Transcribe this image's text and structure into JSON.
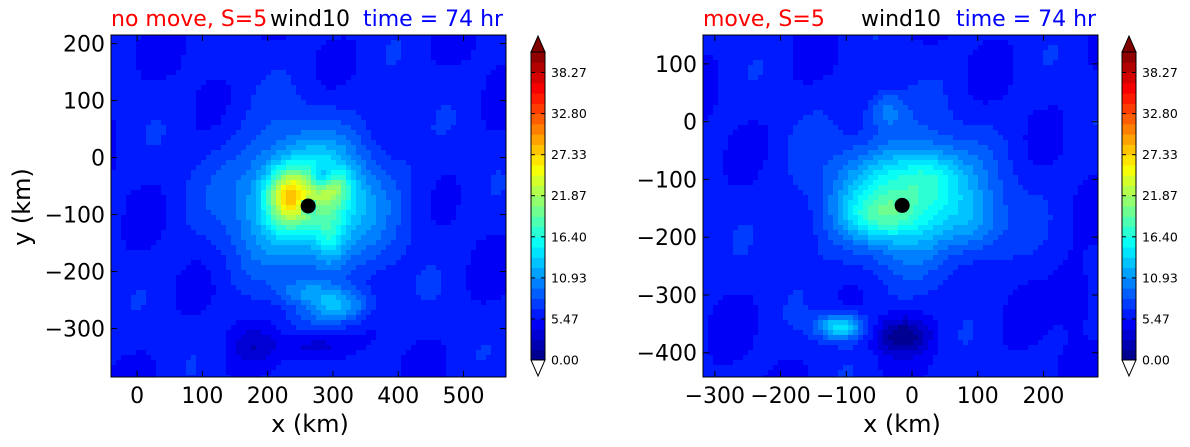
{
  "figure": {
    "panels": [
      {
        "title_left": "no move, S=5",
        "title_mid": "wind10",
        "title_right": "time = 74 hr",
        "xlabel": "x (km)",
        "ylabel": "y (km)"
      },
      {
        "title_left": "move, S=5",
        "title_mid": "wind10",
        "title_right": "time = 74 hr",
        "xlabel": "x (km)",
        "ylabel": ""
      }
    ],
    "colors": {
      "title_left": "#ff0000",
      "title_mid": "#000000",
      "title_right": "#0000ff",
      "marker": "#000000"
    }
  },
  "chart_data": [
    {
      "type": "heatmap",
      "title": "no move, S=5  wind10  time = 74 hr",
      "xlabel": "x (km)",
      "ylabel": "y (km)",
      "xlim": [
        -40,
        565
      ],
      "ylim": [
        -385,
        215
      ],
      "xticks": [
        0,
        100,
        200,
        300,
        400,
        500
      ],
      "yticks": [
        200,
        100,
        0,
        -100,
        -200,
        -300
      ],
      "xtick_labels": [
        "0",
        "100",
        "200",
        "300",
        "400",
        "500"
      ],
      "ytick_labels": [
        "200",
        "100",
        "0",
        "−100",
        "−200",
        "−300"
      ],
      "colorbar": {
        "min": 0.0,
        "max": 41.0,
        "extend": "both",
        "tick_values": [
          0.0,
          5.47,
          10.93,
          16.4,
          21.87,
          27.33,
          32.8,
          38.27
        ],
        "tick_labels": [
          "0.00",
          "5.47",
          "10.93",
          "16.40",
          "21.87",
          "27.33",
          "32.80",
          "38.27"
        ]
      },
      "center_marker": {
        "x": 262,
        "y": -85
      },
      "features": [
        {
          "x": 262,
          "y": -75,
          "sx": 120,
          "sy": 125,
          "v": 7
        },
        {
          "x": 262,
          "y": -75,
          "sx": 80,
          "sy": 85,
          "v": 6
        },
        {
          "x": 232,
          "y": -68,
          "sx": 32,
          "sy": 45,
          "v": 11
        },
        {
          "x": 300,
          "y": -55,
          "sx": 25,
          "sy": 28,
          "v": 6
        },
        {
          "x": 295,
          "y": -140,
          "sx": 22,
          "sy": 50,
          "v": 4
        },
        {
          "x": 262,
          "y": -85,
          "sx": 10,
          "sy": 10,
          "v": -12
        },
        {
          "x": 285,
          "y": -35,
          "sx": 18,
          "sy": 20,
          "v": -6
        },
        {
          "x": 310,
          "y": -260,
          "sx": 50,
          "sy": 30,
          "v": 6
        },
        {
          "x": 255,
          "y": -235,
          "sx": 40,
          "sy": 20,
          "v": 3
        },
        {
          "x": 270,
          "y": -330,
          "sx": 50,
          "sy": 22,
          "v": -3
        },
        {
          "x": 180,
          "y": -330,
          "sx": 30,
          "sy": 30,
          "v": -2
        }
      ]
    },
    {
      "type": "heatmap",
      "title": "move, S=5  wind10  time = 74 hr",
      "xlabel": "x (km)",
      "ylabel": "",
      "xlim": [
        -318,
        283
      ],
      "ylim": [
        -442,
        150
      ],
      "xticks": [
        -300,
        -200,
        -100,
        0,
        100,
        200
      ],
      "yticks": [
        100,
        0,
        -100,
        -200,
        -300,
        -400
      ],
      "xtick_labels": [
        "−300",
        "−200",
        "−100",
        "0",
        "100",
        "200"
      ],
      "ytick_labels": [
        "100",
        "0",
        "−100",
        "−200",
        "−300",
        "−400"
      ],
      "colorbar": {
        "min": 0.0,
        "max": 41.0,
        "extend": "both",
        "tick_values": [
          0.0,
          5.47,
          10.93,
          16.4,
          21.87,
          27.33,
          32.8,
          38.27
        ],
        "tick_labels": [
          "0.00",
          "5.47",
          "10.93",
          "16.40",
          "21.87",
          "27.33",
          "32.80",
          "38.27"
        ]
      },
      "center_marker": {
        "x": -15,
        "y": -145
      },
      "features": [
        {
          "x": -10,
          "y": -135,
          "sx": 130,
          "sy": 110,
          "v": 6
        },
        {
          "x": -5,
          "y": -130,
          "sx": 85,
          "sy": 75,
          "v": 6
        },
        {
          "x": -50,
          "y": -165,
          "sx": 50,
          "sy": 35,
          "v": 4
        },
        {
          "x": 30,
          "y": -90,
          "sx": 45,
          "sy": 40,
          "v": 3
        },
        {
          "x": -110,
          "y": -355,
          "sx": 35,
          "sy": 22,
          "v": 9
        },
        {
          "x": -15,
          "y": -370,
          "sx": 40,
          "sy": 30,
          "v": -5
        },
        {
          "x": -40,
          "y": 20,
          "sx": 30,
          "sy": 35,
          "v": 4
        },
        {
          "x": 100,
          "y": -180,
          "sx": 40,
          "sy": 50,
          "v": 3
        },
        {
          "x": 250,
          "y": -300,
          "sx": 30,
          "sy": 60,
          "v": -2
        }
      ]
    }
  ]
}
